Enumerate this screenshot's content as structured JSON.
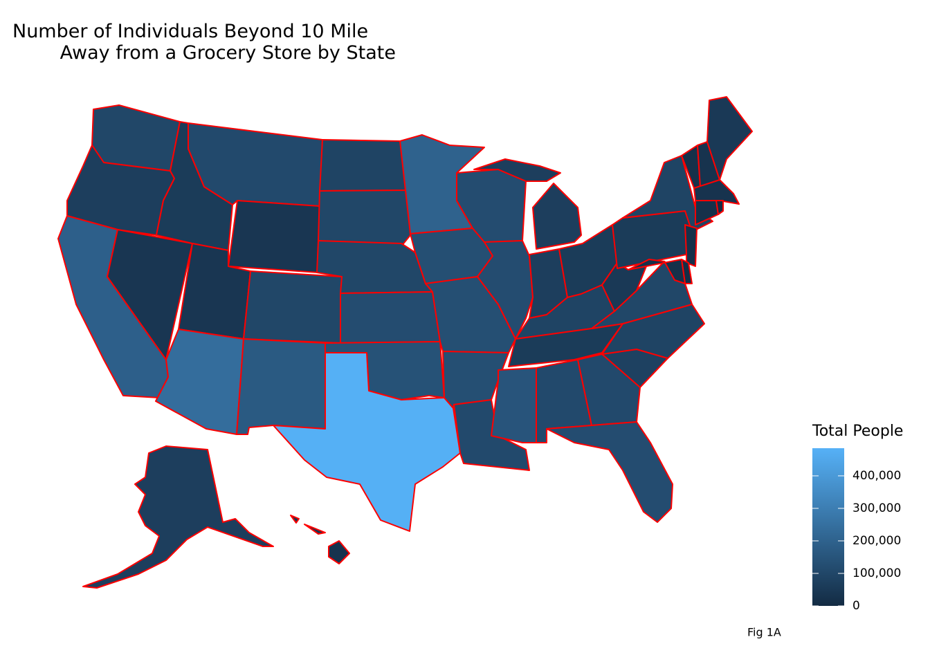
{
  "chart_data": {
    "type": "choropleth",
    "title": "Number of Individuals Beyond 10 Mile\n        Away from a Grocery Store by State",
    "values": [
      100000,
      70000,
      190000,
      40000,
      60000,
      110000,
      40000,
      40000,
      240000,
      100000,
      170000,
      90000,
      100000,
      100000,
      120000,
      140000,
      480000,
      200000,
      130000,
      130000,
      130000,
      110000,
      120000,
      120000,
      70000,
      70000,
      60000,
      90000,
      60000,
      150000,
      110000,
      110000,
      120000,
      80000,
      90000,
      100000,
      50000,
      60000,
      90000,
      20000,
      10000,
      20000,
      20000,
      30000,
      50000,
      30000,
      20000,
      5000,
      70000,
      30000
    ],
    "border_color": "#ff0000",
    "legend_title": "Total People",
    "color_low": "#132B43",
    "color_high": "#56B1F7",
    "colorlim": [
      0,
      485000
    ],
    "colorticks": [
      0,
      {
        "value": 100000,
        "label": "100,000"
      },
      {
        "value": 200000,
        "label": "200,000"
      },
      {
        "value": 300000,
        "label": "300,000"
      },
      {
        "value": 400000,
        "label": "400,000"
      }
    ],
    "caption": "Fig 1A"
  }
}
